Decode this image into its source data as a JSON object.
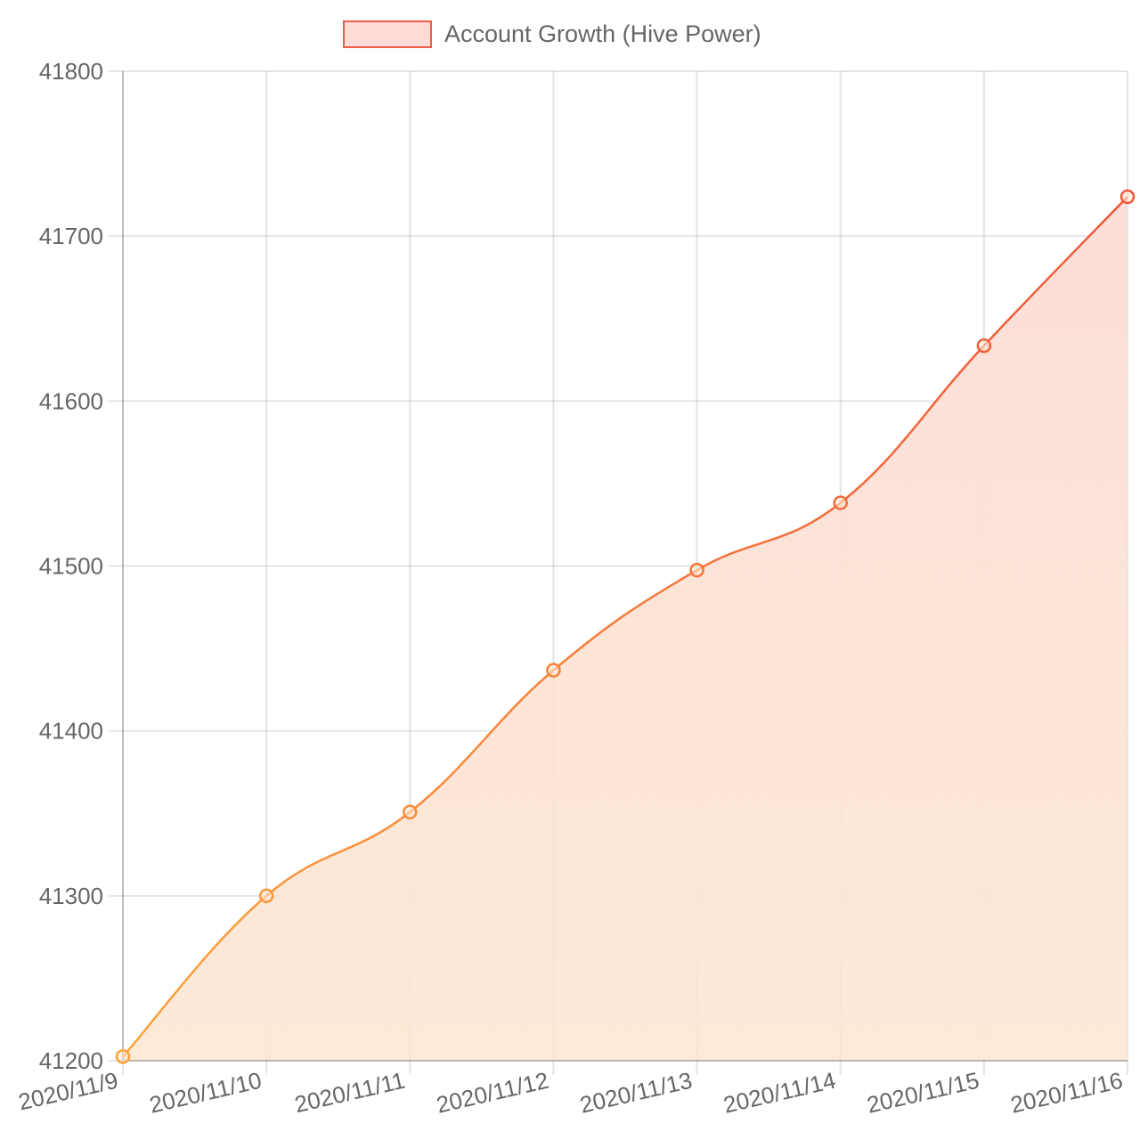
{
  "chart_data": {
    "type": "area",
    "title": "",
    "xlabel": "",
    "ylabel": "",
    "categories": [
      "2020/11/9",
      "2020/11/10",
      "2020/11/11",
      "2020/11/12",
      "2020/11/13",
      "2020/11/14",
      "2020/11/15",
      "2020/11/16"
    ],
    "series": [
      {
        "name": "Account Growth (Hive Power)",
        "values": [
          41202.5,
          41300,
          41350.8,
          41436.8,
          41497.5,
          41538.3,
          41633.6,
          41723.9
        ]
      }
    ],
    "ylim": [
      41200,
      41800
    ],
    "yticks": [
      "41800",
      "41700",
      "41600",
      "41500",
      "41400",
      "41300",
      "41200"
    ],
    "grid": true,
    "legend_position": "top-center",
    "colors": {
      "gradient_start": "#ffa23a",
      "gradient_end": "#f0553a",
      "fill_start": "#fde6d0",
      "fill_end": "#fcddd6",
      "legend_fill": "#fddcd8",
      "legend_border": "#ef5b48",
      "text": "#666666"
    }
  }
}
